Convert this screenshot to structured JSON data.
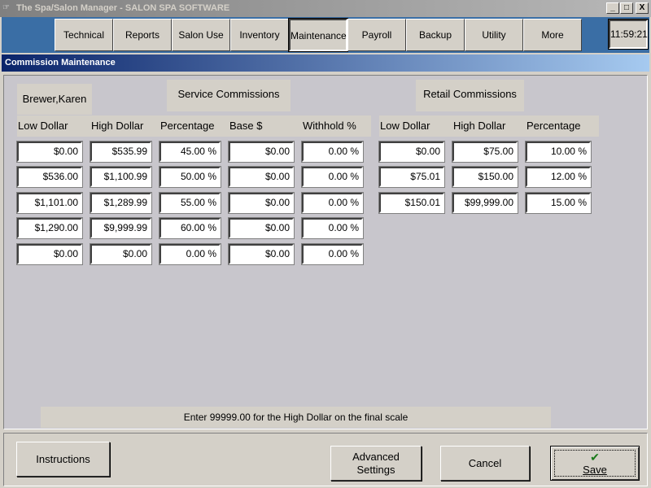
{
  "window": {
    "title": "The Spa/Salon Manager - SALON SPA SOFTWARE",
    "minimize": "_",
    "maximize": "□",
    "close": "X"
  },
  "nav": {
    "items": [
      {
        "label": "Technical"
      },
      {
        "label": "Reports"
      },
      {
        "label": "Salon Use"
      },
      {
        "label": "Inventory"
      },
      {
        "label": "Maintenance",
        "active": true
      },
      {
        "label": "Payroll"
      },
      {
        "label": "Backup"
      },
      {
        "label": "Utility"
      },
      {
        "label": "More"
      }
    ],
    "clock": "11:59:21"
  },
  "header": {
    "title": "Commission Maintenance"
  },
  "service": {
    "employee": "Brewer,Karen",
    "title": "Service Commissions",
    "columns": [
      "Low Dollar",
      "High Dollar",
      "Percentage",
      "Base $",
      "Withhold %"
    ],
    "rows": [
      [
        "$0.00",
        "$535.99",
        "45.00 %",
        "$0.00",
        "0.00 %"
      ],
      [
        "$536.00",
        "$1,100.99",
        "50.00 %",
        "$0.00",
        "0.00 %"
      ],
      [
        "$1,101.00",
        "$1,289.99",
        "55.00 %",
        "$0.00",
        "0.00 %"
      ],
      [
        "$1,290.00",
        "$9,999.99",
        "60.00 %",
        "$0.00",
        "0.00 %"
      ],
      [
        "$0.00",
        "$0.00",
        "0.00 %",
        "$0.00",
        "0.00 %"
      ]
    ]
  },
  "retail": {
    "title": "Retail Commissions",
    "columns": [
      "Low Dollar",
      "High Dollar",
      "Percentage"
    ],
    "rows": [
      [
        "$0.00",
        "$75.00",
        "10.00 %"
      ],
      [
        "$75.01",
        "$150.00",
        "12.00 %"
      ],
      [
        "$150.01",
        "$99,999.00",
        "15.00 %"
      ]
    ]
  },
  "note": "Enter 99999.00 for the High Dollar on the final scale",
  "buttons": {
    "instructions": "Instructions",
    "advanced_1": "Advanced",
    "advanced_2": "Settings",
    "cancel": "Cancel",
    "save": "Save",
    "save_icon": "✔"
  },
  "colors": {
    "toolbar": "#3a6ea5",
    "header_start": "#0a246a",
    "header_end": "#a6caf0",
    "check": "#1a7a1a"
  }
}
